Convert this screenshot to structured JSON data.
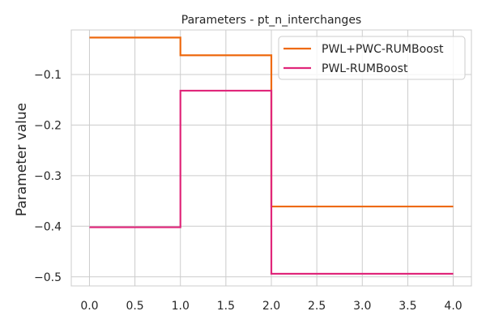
{
  "chart_data": {
    "type": "line",
    "step": "post",
    "title": "Parameters - pt_n_interchanges",
    "xlabel": "",
    "ylabel": "Parameter value",
    "xlim": [
      -0.2,
      4.2
    ],
    "ylim": [
      -0.518,
      -0.012
    ],
    "grid": true,
    "legend_position": "top-right",
    "x_ticks": [
      0.0,
      0.5,
      1.0,
      1.5,
      2.0,
      2.5,
      3.0,
      3.5,
      4.0
    ],
    "x_tick_labels": [
      "0.0",
      "0.5",
      "1.0",
      "1.5",
      "2.0",
      "2.5",
      "3.0",
      "3.5",
      "4.0"
    ],
    "y_ticks": [
      -0.1,
      -0.2,
      -0.3,
      -0.4,
      -0.5
    ],
    "y_tick_labels": [
      "−0.1",
      "−0.2",
      "−0.3",
      "−0.4",
      "−0.5"
    ],
    "series": [
      {
        "name": "PWL+PWC-RUMBoost",
        "color": "#ee6a10",
        "x": [
          0,
          1,
          1,
          2,
          2,
          4
        ],
        "y": [
          -0.027,
          -0.027,
          -0.062,
          -0.062,
          -0.361,
          -0.361
        ]
      },
      {
        "name": "PWL-RUMBoost",
        "color": "#e0267a",
        "x": [
          0,
          1,
          1,
          2,
          2,
          4
        ],
        "y": [
          -0.402,
          -0.402,
          -0.132,
          -0.132,
          -0.494,
          -0.494
        ]
      }
    ]
  }
}
